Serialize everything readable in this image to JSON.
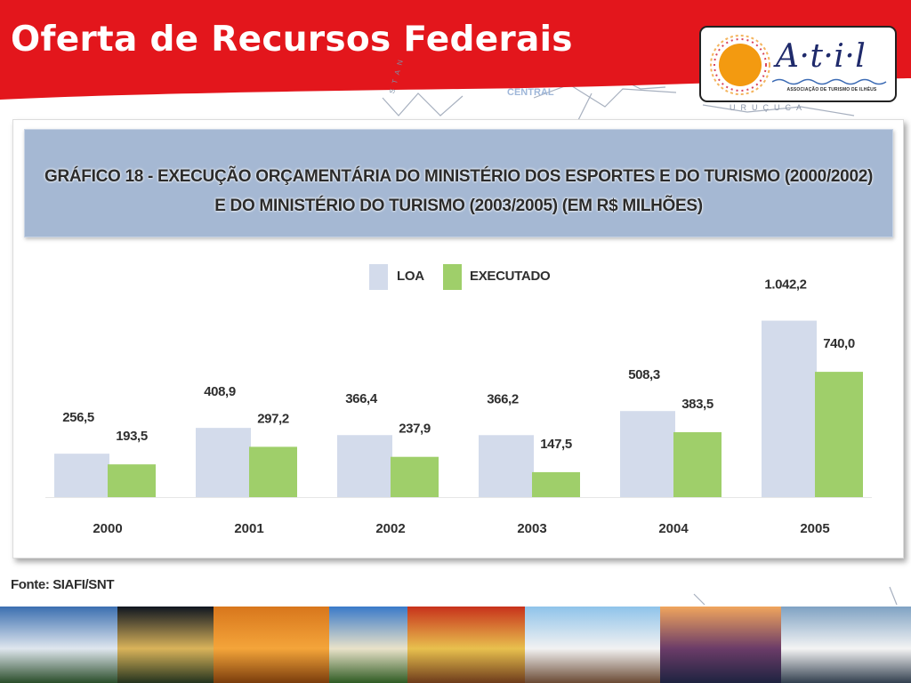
{
  "slide": {
    "title": "Oferta de Recursos Federais",
    "header_color": "#e3161c"
  },
  "map": {
    "label_central": "CENTRAL",
    "label_urucuca": "URUÇUCA",
    "label_stan": "S T A N"
  },
  "logo": {
    "name": "A·t·i·l",
    "caption": "ASSOCIAÇÃO DE TURISMO DE ILHÉUS",
    "sun_color": "#f39a10"
  },
  "chart_data": {
    "type": "bar",
    "title_line1": "GRÁFICO 18 - EXECUÇÃO ORÇAMENTÁRIA DO MINISTÉRIO DOS ESPORTES E DO TURISMO (2000/2002)",
    "title_line2": "E DO MINISTÉRIO DO TURISMO (2003/2005) (EM R$ MILHÕES)",
    "categories": [
      "2000",
      "2001",
      "2002",
      "2003",
      "2004",
      "2005"
    ],
    "series": [
      {
        "name": "LOA",
        "color": "#d3dbeb",
        "values": [
          256.5,
          408.9,
          366.4,
          366.2,
          508.3,
          1042.2
        ],
        "labels": [
          "256,5",
          "408,9",
          "366,4",
          "366,2",
          "508,3",
          "1.042,2"
        ]
      },
      {
        "name": "EXECUTADO",
        "color": "#9fcf6a",
        "values": [
          193.5,
          297.2,
          237.9,
          147.5,
          383.5,
          740.0
        ],
        "labels": [
          "193,5",
          "297,2",
          "237,9",
          "147,5",
          "383,5",
          "740,0"
        ]
      }
    ],
    "ylim": [
      0,
      1100
    ],
    "legend_position": "top-center",
    "grid": false,
    "source": "Fonte: SIAFI/SNT"
  },
  "photos": [
    {
      "subject": "colonial building",
      "colors": [
        "#3b6fb0",
        "#dfe6ee",
        "#2a4d2a"
      ]
    },
    {
      "subject": "cathedral at night",
      "colors": [
        "#0f1620",
        "#d9b35a",
        "#24331e"
      ]
    },
    {
      "subject": "acaraje",
      "colors": [
        "#d8761c",
        "#f4a53a",
        "#7a3c0c"
      ]
    },
    {
      "subject": "beach with palms",
      "colors": [
        "#3a7ac9",
        "#e9e2c9",
        "#2f5b23"
      ]
    },
    {
      "subject": "moqueca dishes",
      "colors": [
        "#c7321b",
        "#e8c04e",
        "#6d3b1b"
      ]
    },
    {
      "subject": "capoeira on beach",
      "colors": [
        "#8fc3ea",
        "#f2f2f2",
        "#6a4a34"
      ]
    },
    {
      "subject": "sunset over water",
      "colors": [
        "#f0a55d",
        "#6b3c68",
        "#1e2340"
      ]
    },
    {
      "subject": "cruise ship",
      "colors": [
        "#7fa2c3",
        "#f4f4f4",
        "#33404f"
      ]
    }
  ]
}
